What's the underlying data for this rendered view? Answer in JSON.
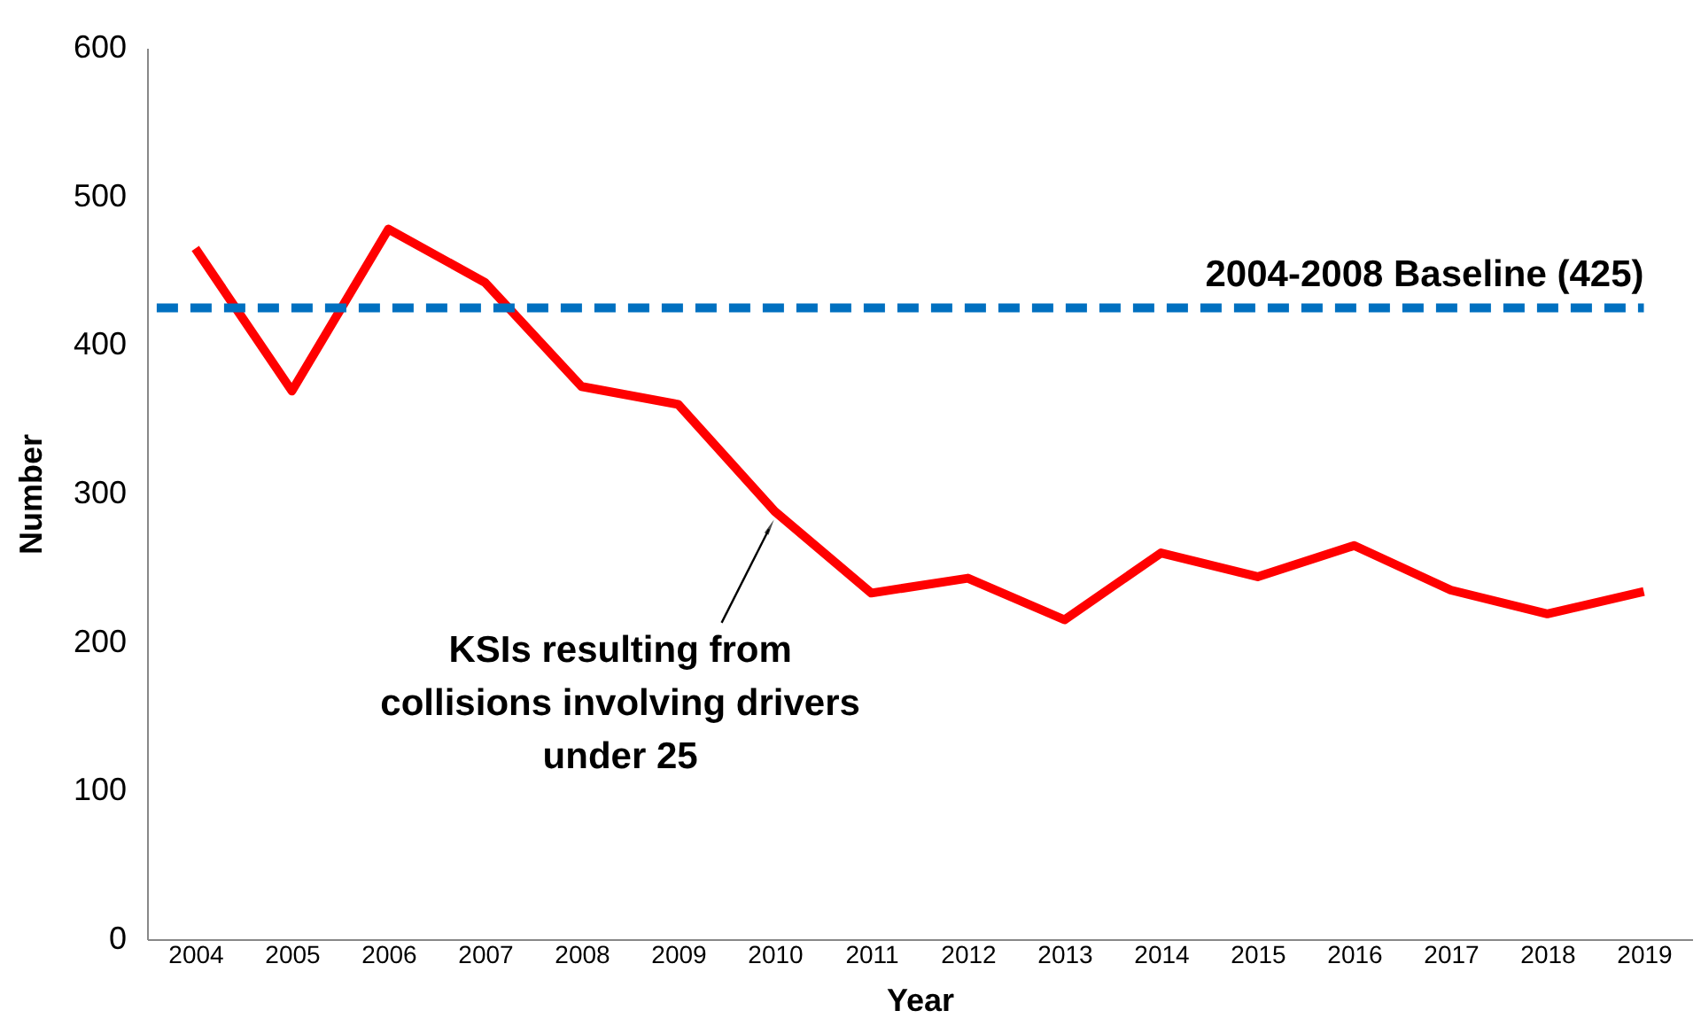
{
  "chart_data": {
    "type": "line",
    "xlabel": "Year",
    "ylabel": "Number",
    "categories": [
      "2004",
      "2005",
      "2006",
      "2007",
      "2008",
      "2009",
      "2010",
      "2011",
      "2012",
      "2013",
      "2014",
      "2015",
      "2016",
      "2017",
      "2018",
      "2019"
    ],
    "series": [
      {
        "name": "KSIs resulting from collisions involving drivers under 25",
        "color": "#ff0000",
        "values": [
          465,
          369,
          478,
          442,
          372,
          360,
          288,
          233,
          243,
          215,
          260,
          244,
          265,
          235,
          219,
          234
        ]
      }
    ],
    "ylim": [
      0,
      600
    ],
    "yticks": [
      0,
      100,
      200,
      300,
      400,
      500,
      600
    ],
    "grid": false,
    "legend": false,
    "marker": "none",
    "line_style": "solid",
    "ref_lines": [
      {
        "axis": "y",
        "value": 425,
        "label": "2004-2008 Baseline (425)",
        "color": "#0070c0",
        "line_style": "dashed"
      }
    ]
  }
}
